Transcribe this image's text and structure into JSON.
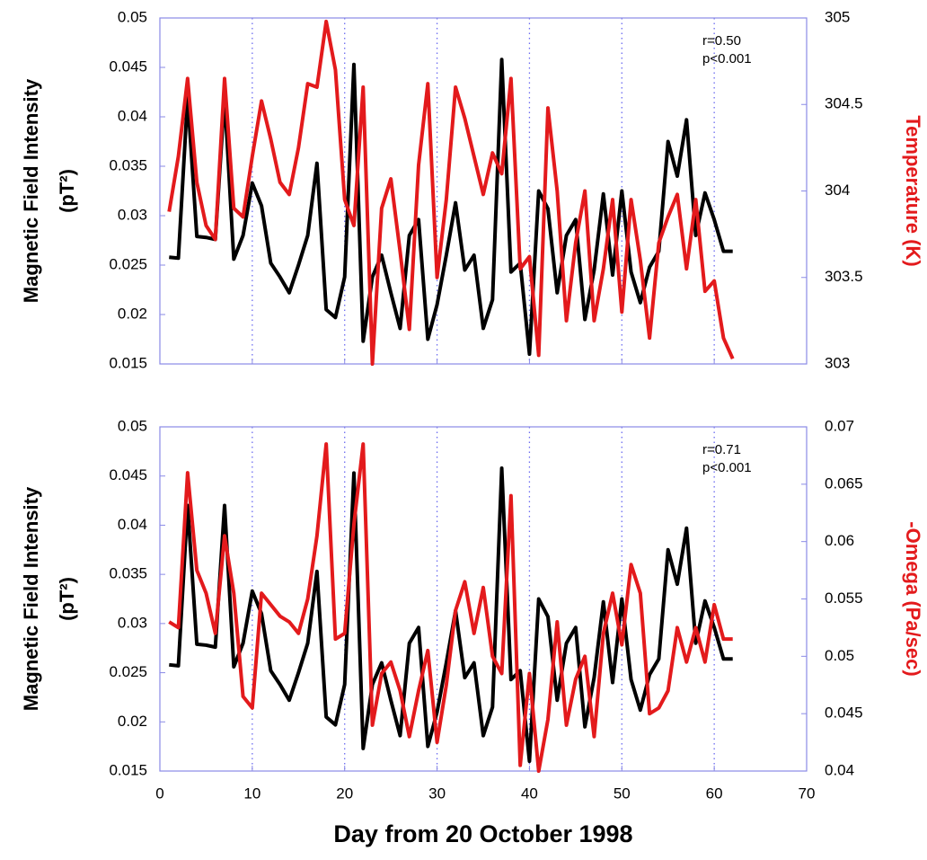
{
  "chart_data": [
    {
      "type": "line",
      "ylabel": "Magnetic Field Intensity",
      "ylabel_unit": "(pT²)",
      "y2label": "Temperature (K)",
      "y2label_color": "#e31a1c",
      "annotation": [
        "r=0.50",
        "p<0.001"
      ],
      "xlim": [
        0,
        70
      ],
      "ylim": [
        0.015,
        0.05
      ],
      "yticks": [
        0.015,
        0.02,
        0.025,
        0.03,
        0.035,
        0.04,
        0.045,
        0.05
      ],
      "y2lim": [
        303,
        305
      ],
      "y2ticks": [
        303,
        303.5,
        304,
        304.5,
        305
      ],
      "x": [
        1,
        2,
        3,
        4,
        5,
        6,
        7,
        8,
        9,
        10,
        11,
        12,
        13,
        14,
        15,
        16,
        17,
        18,
        19,
        20,
        21,
        22,
        23,
        24,
        25,
        26,
        27,
        28,
        29,
        30,
        31,
        32,
        33,
        34,
        35,
        36,
        37,
        38,
        39,
        40,
        41,
        42,
        43,
        44,
        45,
        46,
        47,
        48,
        49,
        50,
        51,
        52,
        53,
        54,
        55,
        56,
        57,
        58,
        59,
        60,
        61,
        62
      ],
      "series": [
        {
          "color": "#000000",
          "values": [
            0.0258,
            0.0257,
            0.042,
            0.0279,
            0.0278,
            0.0276,
            0.042,
            0.0256,
            0.028,
            0.0333,
            0.031,
            0.0252,
            0.0238,
            0.0222,
            0.025,
            0.028,
            0.0353,
            0.0205,
            0.0197,
            0.0238,
            0.0453,
            0.0173,
            0.0238,
            0.026,
            0.0222,
            0.0186,
            0.028,
            0.0296,
            0.0175,
            0.021,
            0.026,
            0.0313,
            0.0245,
            0.026,
            0.0186,
            0.0215,
            0.0458,
            0.0243,
            0.0252,
            0.016,
            0.0325,
            0.0307,
            0.0222,
            0.028,
            0.0296,
            0.0195,
            0.0245,
            0.0322,
            0.024,
            0.0325,
            0.0243,
            0.0212,
            0.0248,
            0.0264,
            0.0375,
            0.034,
            0.0397,
            0.028,
            0.0323,
            0.0296,
            0.0264,
            0.0264
          ]
        },
        {
          "color": "#e31a1c",
          "axis": "y2",
          "values": [
            303.88,
            304.2,
            304.65,
            304.05,
            303.8,
            303.72,
            304.65,
            303.9,
            303.85,
            304.2,
            304.52,
            304.3,
            304.05,
            303.98,
            304.25,
            304.62,
            304.6,
            304.98,
            304.7,
            303.95,
            303.8,
            304.6,
            303.0,
            303.9,
            304.07,
            303.65,
            303.2,
            304.15,
            304.62,
            303.5,
            303.95,
            304.6,
            304.42,
            304.2,
            303.98,
            304.22,
            304.1,
            304.65,
            303.55,
            303.62,
            303.05,
            304.48,
            304.0,
            303.25,
            303.7,
            304.0,
            303.25,
            303.55,
            303.95,
            303.3,
            303.95,
            303.6,
            303.15,
            303.7,
            303.85,
            303.98,
            303.55,
            303.95,
            303.42,
            303.48,
            303.15,
            303.03
          ]
        }
      ]
    },
    {
      "type": "line",
      "ylabel": "Magnetic Field Intensity",
      "ylabel_unit": "(pT²)",
      "y2label": "-Omega (Pa/sec)",
      "y2label_color": "#e31a1c",
      "annotation": [
        "r=0.71",
        "p<0.001"
      ],
      "xlabel": "Day from 20 October 1998",
      "xlim": [
        0,
        70
      ],
      "xticks": [
        0,
        10,
        20,
        30,
        40,
        50,
        60,
        70
      ],
      "ylim": [
        0.015,
        0.05
      ],
      "yticks": [
        0.015,
        0.02,
        0.025,
        0.03,
        0.035,
        0.04,
        0.045,
        0.05
      ],
      "y2lim": [
        0.04,
        0.07
      ],
      "y2ticks": [
        0.04,
        0.045,
        0.05,
        0.055,
        0.06,
        0.065,
        0.07
      ],
      "x": [
        1,
        2,
        3,
        4,
        5,
        6,
        7,
        8,
        9,
        10,
        11,
        12,
        13,
        14,
        15,
        16,
        17,
        18,
        19,
        20,
        21,
        22,
        23,
        24,
        25,
        26,
        27,
        28,
        29,
        30,
        31,
        32,
        33,
        34,
        35,
        36,
        37,
        38,
        39,
        40,
        41,
        42,
        43,
        44,
        45,
        46,
        47,
        48,
        49,
        50,
        51,
        52,
        53,
        54,
        55,
        56,
        57,
        58,
        59,
        60,
        61,
        62
      ],
      "series": [
        {
          "color": "#000000",
          "values": [
            0.0258,
            0.0257,
            0.042,
            0.0279,
            0.0278,
            0.0276,
            0.042,
            0.0256,
            0.028,
            0.0333,
            0.031,
            0.0252,
            0.0238,
            0.0222,
            0.025,
            0.028,
            0.0353,
            0.0205,
            0.0197,
            0.0238,
            0.0453,
            0.0173,
            0.0238,
            0.026,
            0.0222,
            0.0186,
            0.028,
            0.0296,
            0.0175,
            0.021,
            0.026,
            0.0313,
            0.0245,
            0.026,
            0.0186,
            0.0215,
            0.0458,
            0.0243,
            0.0252,
            0.016,
            0.0325,
            0.0307,
            0.0222,
            0.028,
            0.0296,
            0.0195,
            0.0245,
            0.0322,
            0.024,
            0.0325,
            0.0243,
            0.0212,
            0.0248,
            0.0264,
            0.0375,
            0.034,
            0.0397,
            0.028,
            0.0323,
            0.0296,
            0.0264,
            0.0264
          ]
        },
        {
          "color": "#e31a1c",
          "axis": "y2",
          "values": [
            0.053,
            0.0525,
            0.066,
            0.0575,
            0.0555,
            0.052,
            0.0605,
            0.0555,
            0.0465,
            0.0455,
            0.0555,
            0.0545,
            0.0535,
            0.053,
            0.052,
            0.055,
            0.0605,
            0.0685,
            0.0515,
            0.052,
            0.0615,
            0.0685,
            0.044,
            0.0485,
            0.0495,
            0.047,
            0.043,
            0.047,
            0.0505,
            0.0425,
            0.0475,
            0.054,
            0.0565,
            0.052,
            0.056,
            0.05,
            0.0485,
            0.064,
            0.0405,
            0.0485,
            0.04,
            0.0445,
            0.053,
            0.044,
            0.048,
            0.05,
            0.043,
            0.052,
            0.0555,
            0.051,
            0.058,
            0.0555,
            0.045,
            0.0455,
            0.047,
            0.0525,
            0.0495,
            0.0525,
            0.0495,
            0.0545,
            0.0515,
            0.0515
          ]
        }
      ]
    }
  ]
}
